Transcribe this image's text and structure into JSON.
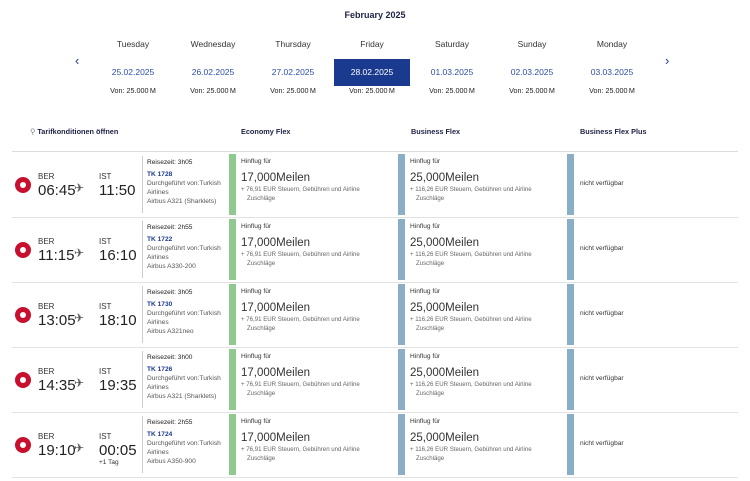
{
  "month": "February 2025",
  "days": [
    {
      "name": "Tuesday",
      "date": "25.02.2025",
      "price": "Von: 25.000 M",
      "selected": false
    },
    {
      "name": "Wednesday",
      "date": "26.02.2025",
      "price": "Von: 25.000 M",
      "selected": false
    },
    {
      "name": "Thursday",
      "date": "27.02.2025",
      "price": "Von: 25.000 M",
      "selected": false
    },
    {
      "name": "Friday",
      "date": "28.02.2025",
      "price": "Von: 25.000 M",
      "selected": true
    },
    {
      "name": "Saturday",
      "date": "01.03.2025",
      "price": "Von: 25.000 M",
      "selected": false
    },
    {
      "name": "Sunday",
      "date": "02.03.2025",
      "price": "Von: 25.000 M",
      "selected": false
    },
    {
      "name": "Monday",
      "date": "03.03.2025",
      "price": "Von: 25.000 M",
      "selected": false
    }
  ],
  "nav": {
    "prev_icon": "chevron-left-icon",
    "prev": "‹",
    "next_icon": "chevron-right-icon",
    "next": "›"
  },
  "headers": {
    "tarif": "Tarifkonditionen öffnen",
    "economy": "Economy Flex",
    "business": "Business Flex",
    "business_plus": "Business Flex Plus"
  },
  "labels": {
    "hinflug": "Hinflug für",
    "tax_line1_eco": "+ 76,91 EUR Steuern, Gebühren und Airline",
    "tax_line1_bus": "+ 116,26 EUR Steuern, Gebühren und Airline",
    "tax_line2": "Zuschläge",
    "not_available": "nicht verfügbar",
    "eco_miles": "17,000Meilen",
    "bus_miles": "25,000Meilen"
  },
  "colors": {
    "accent": "#1a3a8f",
    "economy_bar": "#8fc98f",
    "business_bar": "#8aaec6",
    "airline_logo": "#c8102e"
  },
  "flights": [
    {
      "from": "BER",
      "dep": "06:45",
      "to": "IST",
      "arr": "11:50",
      "next_day": "",
      "duration": "Reisezeit: 3h05",
      "flight": "TK 1728",
      "operated": "Durchgeführt von:Turkish Airlines",
      "aircraft": "Airbus A321 (Sharklets)"
    },
    {
      "from": "BER",
      "dep": "11:15",
      "to": "IST",
      "arr": "16:10",
      "next_day": "",
      "duration": "Reisezeit: 2h55",
      "flight": "TK 1722",
      "operated": "Durchgeführt von:Turkish Airlines",
      "aircraft": "Airbus A330-200"
    },
    {
      "from": "BER",
      "dep": "13:05",
      "to": "IST",
      "arr": "18:10",
      "next_day": "",
      "duration": "Reisezeit: 3h05",
      "flight": "TK 1730",
      "operated": "Durchgeführt von:Turkish Airlines",
      "aircraft": "Airbus A321neo"
    },
    {
      "from": "BER",
      "dep": "14:35",
      "to": "IST",
      "arr": "19:35",
      "next_day": "",
      "duration": "Reisezeit: 3h00",
      "flight": "TK 1726",
      "operated": "Durchgeführt von:Turkish Airlines",
      "aircraft": "Airbus A321 (Sharklets)"
    },
    {
      "from": "BER",
      "dep": "19:10",
      "to": "IST",
      "arr": "00:05",
      "next_day": "+1 Tag",
      "duration": "Reisezeit: 2h55",
      "flight": "TK 1724",
      "operated": "Durchgeführt von:Turkish Airlines",
      "aircraft": "Airbus A350-900"
    }
  ]
}
